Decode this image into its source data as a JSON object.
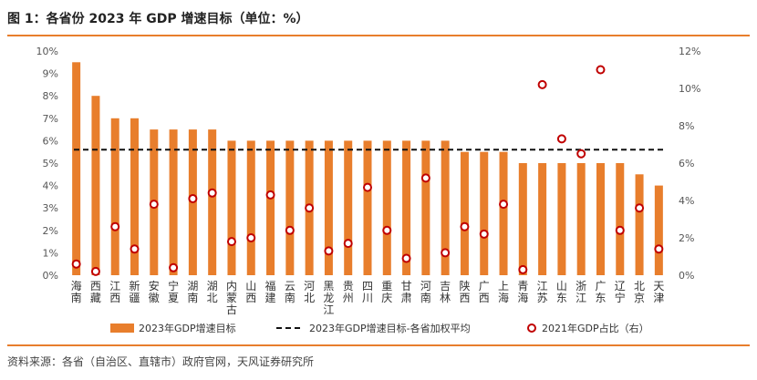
{
  "title": "图 1：各省份 2023 年 GDP 增速目标（单位：%）",
  "source": "资料来源：各省（自治区、直辖市）政府官网，天风证券研究所",
  "colors": {
    "bar": "#e87e2c",
    "line": "#111111",
    "dot": "#c00000",
    "rule": "#e87e2c"
  },
  "chart_data": {
    "type": "bar",
    "categories": [
      "海南",
      "西藏",
      "江西",
      "新疆",
      "安徽",
      "宁夏",
      "湖南",
      "湖北",
      "内蒙古",
      "山西",
      "福建",
      "云南",
      "河北",
      "黑龙江",
      "贵州",
      "四川",
      "重庆",
      "甘肃",
      "河南",
      "吉林",
      "陕西",
      "广西",
      "上海",
      "青海",
      "江苏",
      "山东",
      "浙江",
      "广东",
      "辽宁",
      "北京",
      "天津"
    ],
    "y_left": {
      "min": 0,
      "max": 10,
      "ticks": [
        "0%",
        "1%",
        "2%",
        "3%",
        "4%",
        "5%",
        "6%",
        "7%",
        "8%",
        "9%",
        "10%"
      ]
    },
    "y_right": {
      "min": 0,
      "max": 12,
      "ticks": [
        "0%",
        "2%",
        "4%",
        "6%",
        "8%",
        "10%",
        "12%"
      ]
    },
    "series": [
      {
        "name": "2023年GDP增速目标",
        "type": "bar",
        "axis": "left",
        "values": [
          9.5,
          8,
          7,
          7,
          6.5,
          6.5,
          6.5,
          6.5,
          6,
          6,
          6,
          6,
          6,
          6,
          6,
          6,
          6,
          6,
          6,
          6,
          5.5,
          5.5,
          5.5,
          5,
          5,
          5,
          5,
          5,
          5,
          4.5,
          4
        ]
      },
      {
        "name": "2023年GDP增速目标-各省加权平均",
        "type": "line",
        "axis": "left",
        "value": 5.6
      },
      {
        "name": "2021年GDP占比（右）",
        "type": "scatter",
        "axis": "right",
        "values": [
          0.6,
          0.2,
          2.6,
          1.4,
          3.8,
          0.4,
          4.1,
          4.4,
          1.8,
          2.0,
          4.3,
          2.4,
          3.6,
          1.3,
          1.7,
          4.7,
          2.4,
          0.9,
          5.2,
          1.2,
          2.6,
          2.2,
          3.8,
          0.3,
          10.2,
          7.3,
          6.5,
          11.0,
          2.4,
          3.6,
          1.4
        ]
      }
    ],
    "legend_position": "bottom",
    "grid": false
  }
}
